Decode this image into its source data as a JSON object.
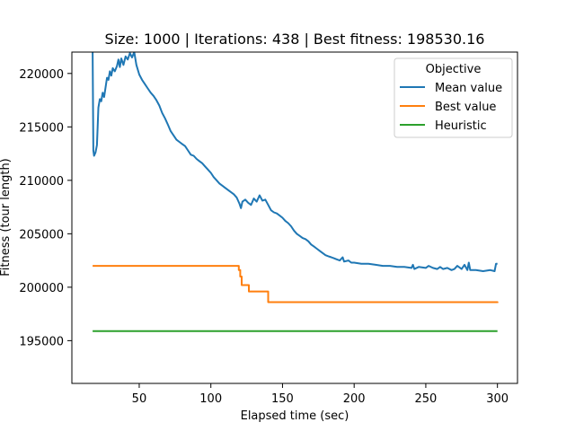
{
  "chart_data": {
    "type": "line",
    "title": "Size: 1000 | Iterations: 438 | Best fitness: 198530.16",
    "xlabel": "Elapsed time (sec)",
    "ylabel": "Fitness (tour length)",
    "xlim": [
      3,
      314
    ],
    "ylim": [
      191000,
      222000
    ],
    "xticks": [
      50,
      100,
      150,
      200,
      250,
      300
    ],
    "xtick_labels": [
      "50",
      "100",
      "150",
      "200",
      "250",
      "300"
    ],
    "yticks": [
      195000,
      200000,
      205000,
      210000,
      215000,
      220000
    ],
    "ytick_labels": [
      "195000",
      "200000",
      "205000",
      "210000",
      "215000",
      "220000"
    ],
    "grid": false,
    "legend": {
      "title": "Objective",
      "placement": "top-right"
    },
    "series": [
      {
        "name": "Mean value",
        "color": "#1f77b4",
        "points": [
          [
            17.5,
            222000
          ],
          [
            18,
            212800
          ],
          [
            18.5,
            212300
          ],
          [
            19.5,
            212600
          ],
          [
            20.5,
            213300
          ],
          [
            21,
            215000
          ],
          [
            21.5,
            216800
          ],
          [
            22.5,
            217600
          ],
          [
            23.5,
            217400
          ],
          [
            24.5,
            218200
          ],
          [
            25.5,
            217800
          ],
          [
            26.5,
            218700
          ],
          [
            27.5,
            219600
          ],
          [
            28.5,
            219400
          ],
          [
            29.5,
            220200
          ],
          [
            30.5,
            219800
          ],
          [
            31.5,
            220500
          ],
          [
            33,
            220200
          ],
          [
            34.5,
            220700
          ],
          [
            35.5,
            221300
          ],
          [
            36.5,
            220600
          ],
          [
            37.5,
            221400
          ],
          [
            39,
            220800
          ],
          [
            40.5,
            221600
          ],
          [
            42,
            221300
          ],
          [
            43.5,
            221900
          ],
          [
            45,
            221500
          ],
          [
            46.5,
            222000
          ],
          [
            48,
            220800
          ],
          [
            50,
            219900
          ],
          [
            52,
            219400
          ],
          [
            54,
            219000
          ],
          [
            56,
            218600
          ],
          [
            58,
            218200
          ],
          [
            60,
            217900
          ],
          [
            62,
            217500
          ],
          [
            64,
            217000
          ],
          [
            66,
            216300
          ],
          [
            68,
            215800
          ],
          [
            70,
            215200
          ],
          [
            72,
            214600
          ],
          [
            74,
            214200
          ],
          [
            76,
            213800
          ],
          [
            78,
            213600
          ],
          [
            80,
            213400
          ],
          [
            82,
            213200
          ],
          [
            84,
            212800
          ],
          [
            86,
            212400
          ],
          [
            88,
            212300
          ],
          [
            90,
            212000
          ],
          [
            92,
            211800
          ],
          [
            94,
            211600
          ],
          [
            96,
            211300
          ],
          [
            98,
            211000
          ],
          [
            100,
            210700
          ],
          [
            102,
            210300
          ],
          [
            104,
            210000
          ],
          [
            106,
            209700
          ],
          [
            108,
            209500
          ],
          [
            110,
            209300
          ],
          [
            112,
            209100
          ],
          [
            114,
            208900
          ],
          [
            116,
            208700
          ],
          [
            118,
            208400
          ],
          [
            120,
            207800
          ],
          [
            121,
            207400
          ],
          [
            122,
            208000
          ],
          [
            124,
            208200
          ],
          [
            126,
            207900
          ],
          [
            128,
            207700
          ],
          [
            130,
            208300
          ],
          [
            132,
            208000
          ],
          [
            134,
            208600
          ],
          [
            136,
            208100
          ],
          [
            138,
            208200
          ],
          [
            140,
            207700
          ],
          [
            142,
            207200
          ],
          [
            144,
            207000
          ],
          [
            146,
            206900
          ],
          [
            148,
            206700
          ],
          [
            150,
            206500
          ],
          [
            152,
            206200
          ],
          [
            154,
            206000
          ],
          [
            156,
            205700
          ],
          [
            158,
            205300
          ],
          [
            160,
            205000
          ],
          [
            162,
            204800
          ],
          [
            164,
            204600
          ],
          [
            166,
            204500
          ],
          [
            168,
            204300
          ],
          [
            170,
            204000
          ],
          [
            172,
            203800
          ],
          [
            174,
            203600
          ],
          [
            176,
            203400
          ],
          [
            178,
            203200
          ],
          [
            180,
            203000
          ],
          [
            182,
            202900
          ],
          [
            184,
            202800
          ],
          [
            186,
            202700
          ],
          [
            188,
            202600
          ],
          [
            190,
            202500
          ],
          [
            192,
            202800
          ],
          [
            193,
            202400
          ],
          [
            196,
            202500
          ],
          [
            198,
            202300
          ],
          [
            200,
            202300
          ],
          [
            205,
            202200
          ],
          [
            210,
            202200
          ],
          [
            215,
            202100
          ],
          [
            220,
            202000
          ],
          [
            225,
            202000
          ],
          [
            230,
            201900
          ],
          [
            235,
            201900
          ],
          [
            240,
            201800
          ],
          [
            241,
            202100
          ],
          [
            242,
            201700
          ],
          [
            245,
            201900
          ],
          [
            250,
            201800
          ],
          [
            252,
            202000
          ],
          [
            255,
            201800
          ],
          [
            258,
            201700
          ],
          [
            260,
            201900
          ],
          [
            262,
            201700
          ],
          [
            265,
            201800
          ],
          [
            268,
            201600
          ],
          [
            270,
            201700
          ],
          [
            272,
            202000
          ],
          [
            275,
            201700
          ],
          [
            277,
            202100
          ],
          [
            279,
            201600
          ],
          [
            280,
            202300
          ],
          [
            281,
            201600
          ],
          [
            285,
            201600
          ],
          [
            290,
            201500
          ],
          [
            295,
            201600
          ],
          [
            298,
            201500
          ],
          [
            299,
            202200
          ],
          [
            300,
            202200
          ]
        ]
      },
      {
        "name": "Best value",
        "color": "#ff7f0e",
        "points": [
          [
            17.5,
            202000
          ],
          [
            119.5,
            202000
          ],
          [
            119.5,
            201600
          ],
          [
            120.5,
            201600
          ],
          [
            120.5,
            201000
          ],
          [
            121.5,
            201000
          ],
          [
            121.5,
            200200
          ],
          [
            126.5,
            200200
          ],
          [
            126.5,
            199600
          ],
          [
            140,
            199600
          ],
          [
            140,
            198600
          ],
          [
            300,
            198600
          ],
          [
            300,
            198530
          ]
        ]
      },
      {
        "name": "Heuristic",
        "color": "#2ca02c",
        "points": [
          [
            17.5,
            195900
          ],
          [
            300,
            195900
          ]
        ]
      }
    ]
  }
}
